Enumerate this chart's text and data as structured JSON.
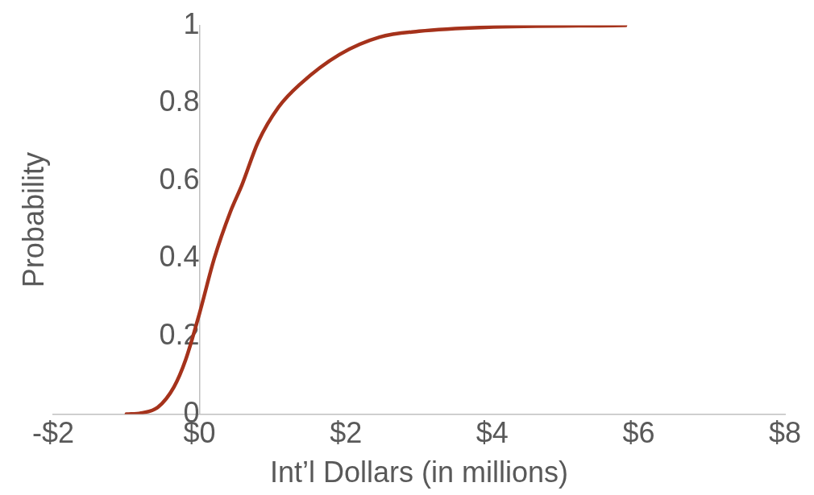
{
  "chart_data": {
    "type": "line",
    "xlabel": "Int’l Dollars (in millions)",
    "ylabel": "Probability",
    "series": [
      {
        "color": "#a5321b",
        "x": [
          -1.0,
          -0.8,
          -0.57,
          -0.35,
          -0.19,
          0,
          0.2,
          0.42,
          0.58,
          0.8,
          1.08,
          1.38,
          1.91,
          2.46,
          3.0,
          3.9,
          5.82
        ],
        "values": [
          0,
          0.003,
          0.018,
          0.07,
          0.14,
          0.26,
          0.4,
          0.52,
          0.59,
          0.7,
          0.79,
          0.85,
          0.925,
          0.97,
          0.985,
          0.995,
          1.0
        ]
      }
    ],
    "xlim": [
      -2,
      8
    ],
    "xticks": [
      {
        "value": -2,
        "label": "-$2"
      },
      {
        "value": 0,
        "label": "$0"
      },
      {
        "value": 2,
        "label": "$2"
      },
      {
        "value": 4,
        "label": "$4"
      },
      {
        "value": 6,
        "label": "$6"
      },
      {
        "value": 8,
        "label": "$8"
      }
    ],
    "ylim": [
      0,
      1
    ],
    "yticks": [
      0,
      0.2,
      0.4,
      0.6,
      0.8,
      1
    ],
    "grid": false,
    "legend": false,
    "marker": "none",
    "line_style": "solid"
  }
}
